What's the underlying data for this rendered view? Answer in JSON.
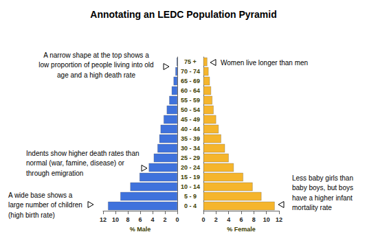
{
  "chart_data": {
    "type": "bar",
    "orientation": "horizontal",
    "title": "Annotating an LEDC Population Pyramid",
    "categories": [
      "0 - 4",
      "5 - 9",
      "10 - 14",
      "15 - 19",
      "20 - 24",
      "25 - 29",
      "30 - 34",
      "35 - 39",
      "40 - 44",
      "45 - 49",
      "50 - 54",
      "55 - 59",
      "60 - 64",
      "65 - 69",
      "70 - 74",
      "75 +"
    ],
    "series": [
      {
        "name": "% Male",
        "color": "#3f72dc",
        "values": [
          11.2,
          9.2,
          7.6,
          6.1,
          4.6,
          3.8,
          3.2,
          2.9,
          2.7,
          2.2,
          1.7,
          1.3,
          0.9,
          0.6,
          0.3,
          0.1
        ]
      },
      {
        "name": "% Female",
        "color": "#f5b52c",
        "values": [
          11.3,
          9.2,
          7.8,
          6.3,
          4.8,
          4.0,
          3.4,
          2.8,
          2.4,
          2.0,
          1.6,
          1.4,
          1.2,
          1.0,
          0.8,
          0.6
        ]
      }
    ],
    "xlim": [
      0,
      12
    ],
    "xticks": [
      0,
      2,
      4,
      6,
      8,
      10,
      12
    ],
    "grid": false,
    "annotations": [
      "A narrow shape at the top shows a\nlow proportion of people living into old\nage and a high death rate",
      "Women live longer than men",
      "Indents show higher death rates than\nnormal (war, famine, disease) or\nthrough emigration",
      "A wide base shows a\nlarge number of children\n(high birth rate)",
      "Less baby girls than\nbaby boys, but boys\nhave a higher infant\nmortality rate"
    ]
  }
}
